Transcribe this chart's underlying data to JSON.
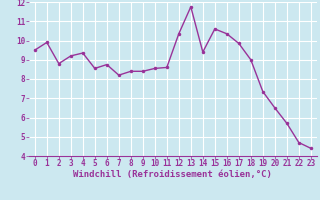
{
  "x": [
    0,
    1,
    2,
    3,
    4,
    5,
    6,
    7,
    8,
    9,
    10,
    11,
    12,
    13,
    14,
    15,
    16,
    17,
    18,
    19,
    20,
    21,
    22,
    23
  ],
  "y": [
    9.5,
    9.9,
    8.8,
    9.2,
    9.35,
    8.55,
    8.75,
    8.2,
    8.4,
    8.4,
    8.55,
    8.6,
    10.35,
    11.75,
    9.4,
    10.6,
    10.35,
    9.85,
    9.0,
    7.35,
    6.5,
    5.7,
    4.7,
    4.4
  ],
  "line_color": "#993399",
  "marker": ".",
  "marker_size": 3,
  "background_color": "#cce8f0",
  "grid_color": "#ffffff",
  "xlabel": "Windchill (Refroidissement éolien,°C)",
  "xlabel_color": "#993399",
  "tick_color": "#993399",
  "ylim": [
    4,
    12
  ],
  "xlim": [
    -0.5,
    23.5
  ],
  "yticks": [
    4,
    5,
    6,
    7,
    8,
    9,
    10,
    11,
    12
  ],
  "xticks": [
    0,
    1,
    2,
    3,
    4,
    5,
    6,
    7,
    8,
    9,
    10,
    11,
    12,
    13,
    14,
    15,
    16,
    17,
    18,
    19,
    20,
    21,
    22,
    23
  ],
  "tick_fontsize": 5.5,
  "xlabel_fontsize": 6.5,
  "linewidth": 1.0
}
